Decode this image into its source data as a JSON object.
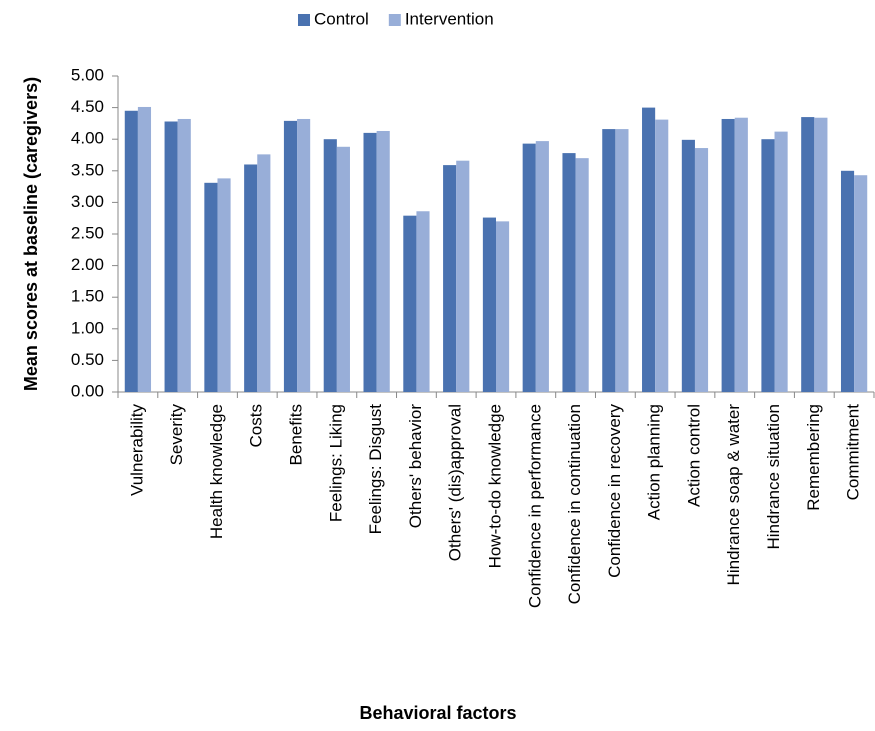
{
  "chart_data": {
    "type": "bar",
    "x_label": "Behavioral factors",
    "y_label": "Mean scores at baseline (caregivers)",
    "categories": [
      "Vulnerability",
      "Severity",
      "Health knowledge",
      "Costs",
      "Benefits",
      "Feelings: Liking",
      "Feelings: Disgust",
      "Others' behavior",
      "Others' (dis)approval",
      "How-to-do knowledge",
      "Confidence in performance",
      "Confidence in continuation",
      "Confidence in recovery",
      "Action planning",
      "Action control",
      "Hindrance soap & water",
      "Hindrance situation",
      "Remembering",
      "Commitment"
    ],
    "series": [
      {
        "name": "Control",
        "color": "#4a72b0",
        "values": [
          4.45,
          4.28,
          3.31,
          3.6,
          4.29,
          4.0,
          4.1,
          2.79,
          3.59,
          2.76,
          3.93,
          3.78,
          4.16,
          4.5,
          3.99,
          4.32,
          4.0,
          4.35,
          3.5
        ]
      },
      {
        "name": "Intervention",
        "color": "#98aed8",
        "values": [
          4.51,
          4.32,
          3.38,
          3.76,
          4.32,
          3.88,
          4.13,
          2.86,
          3.66,
          2.7,
          3.97,
          3.7,
          4.16,
          4.31,
          3.86,
          4.34,
          4.12,
          4.34,
          3.43
        ]
      }
    ],
    "ylim": [
      0,
      5
    ],
    "yticks": [
      {
        "value": 0,
        "label": "0.00"
      },
      {
        "value": 0.5,
        "label": "0.50"
      },
      {
        "value": 1,
        "label": "1.00"
      },
      {
        "value": 1.5,
        "label": "1.50"
      },
      {
        "value": 2,
        "label": "2.00"
      },
      {
        "value": 2.5,
        "label": "2.50"
      },
      {
        "value": 3,
        "label": "3.00"
      },
      {
        "value": 3.5,
        "label": "3.50"
      },
      {
        "value": 4,
        "label": "4.00"
      },
      {
        "value": 4.5,
        "label": "4.50"
      },
      {
        "value": 5,
        "label": "5.00"
      }
    ],
    "grid": false,
    "legend": "top"
  }
}
